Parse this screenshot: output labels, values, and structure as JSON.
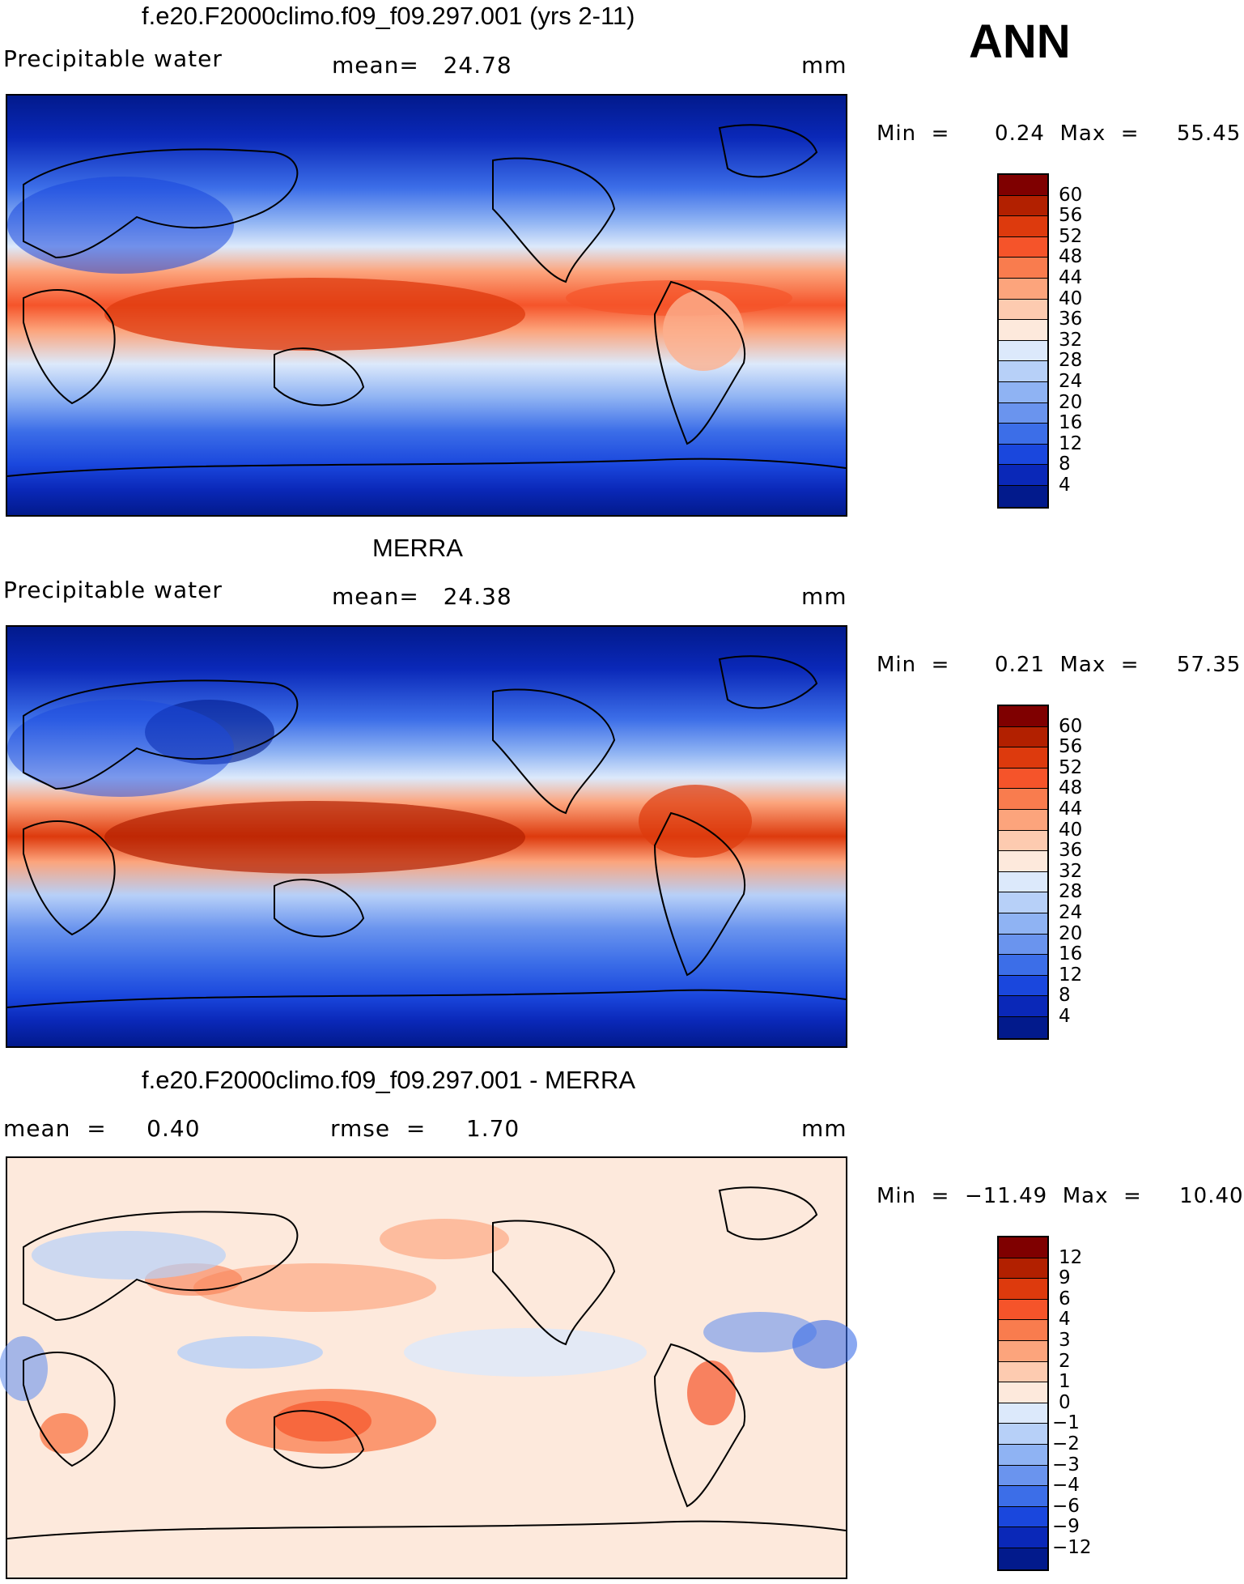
{
  "season": "ANN",
  "panels": [
    {
      "title": "f.e20.F2000climo.f09_f09.297.001 (yrs 2-11)",
      "left_label": "Precipitable water",
      "mid_label": "mean=   24.78",
      "units": "mm",
      "minmax": "Min  =      0.24  Max  =     55.45",
      "colorbar": {
        "colors": [
          "#7f0000",
          "#b22000",
          "#dd3a0d",
          "#f5542a",
          "#f97c4e",
          "#fca47c",
          "#fdcbb0",
          "#fde9dc",
          "#dce9fb",
          "#b7d0f8",
          "#8fb3f3",
          "#6a94ee",
          "#3c6ee8",
          "#1a47dd",
          "#0a28b8",
          "#021a8c"
        ],
        "labels": [
          "60",
          "56",
          "52",
          "48",
          "44",
          "40",
          "36",
          "32",
          "28",
          "24",
          "20",
          "16",
          "12",
          "8",
          "4"
        ]
      }
    },
    {
      "title": "MERRA",
      "left_label": "Precipitable water",
      "mid_label": "mean=   24.38",
      "units": "mm",
      "minmax": "Min  =      0.21  Max  =     57.35",
      "colorbar": {
        "colors": [
          "#7f0000",
          "#b22000",
          "#dd3a0d",
          "#f5542a",
          "#f97c4e",
          "#fca47c",
          "#fdcbb0",
          "#fde9dc",
          "#dce9fb",
          "#b7d0f8",
          "#8fb3f3",
          "#6a94ee",
          "#3c6ee8",
          "#1a47dd",
          "#0a28b8",
          "#021a8c"
        ],
        "labels": [
          "60",
          "56",
          "52",
          "48",
          "44",
          "40",
          "36",
          "32",
          "28",
          "24",
          "20",
          "16",
          "12",
          "8",
          "4"
        ]
      }
    },
    {
      "title": "f.e20.F2000climo.f09_f09.297.001 - MERRA",
      "left_label": "mean  =     0.40",
      "mid_label": "rmse  =     1.70",
      "units": "mm",
      "minmax": "Min  =  −11.49  Max  =     10.40",
      "colorbar": {
        "colors": [
          "#7f0000",
          "#b22000",
          "#dd3a0d",
          "#f5542a",
          "#f97c4e",
          "#fca47c",
          "#fdcbb0",
          "#fde9dc",
          "#dce9fb",
          "#b7d0f8",
          "#8fb3f3",
          "#6a94ee",
          "#3c6ee8",
          "#1a47dd",
          "#0a28b8",
          "#021a8c"
        ],
        "labels": [
          "12",
          "9",
          "6",
          "4",
          "3",
          "2",
          "1",
          "0",
          "−1",
          "−2",
          "−3",
          "−4",
          "−6",
          "−9",
          "−12"
        ]
      }
    }
  ],
  "chart_data": [
    {
      "type": "heatmap",
      "title": "f.e20.F2000climo.f09_f09.297.001 (yrs 2-11)",
      "variable": "Precipitable water",
      "units": "mm",
      "mean": 24.78,
      "min": 0.24,
      "max": 55.45,
      "levels": [
        4,
        8,
        12,
        16,
        20,
        24,
        28,
        32,
        36,
        40,
        44,
        48,
        52,
        56,
        60
      ]
    },
    {
      "type": "heatmap",
      "title": "MERRA",
      "variable": "Precipitable water",
      "units": "mm",
      "mean": 24.38,
      "min": 0.21,
      "max": 57.35,
      "levels": [
        4,
        8,
        12,
        16,
        20,
        24,
        28,
        32,
        36,
        40,
        44,
        48,
        52,
        56,
        60
      ]
    },
    {
      "type": "heatmap",
      "title": "f.e20.F2000climo.f09_f09.297.001 - MERRA",
      "units": "mm",
      "mean": 0.4,
      "rmse": 1.7,
      "min": -11.49,
      "max": 10.4,
      "levels": [
        -12,
        -9,
        -6,
        -4,
        -3,
        -2,
        -1,
        0,
        1,
        2,
        3,
        4,
        6,
        9,
        12
      ]
    }
  ]
}
